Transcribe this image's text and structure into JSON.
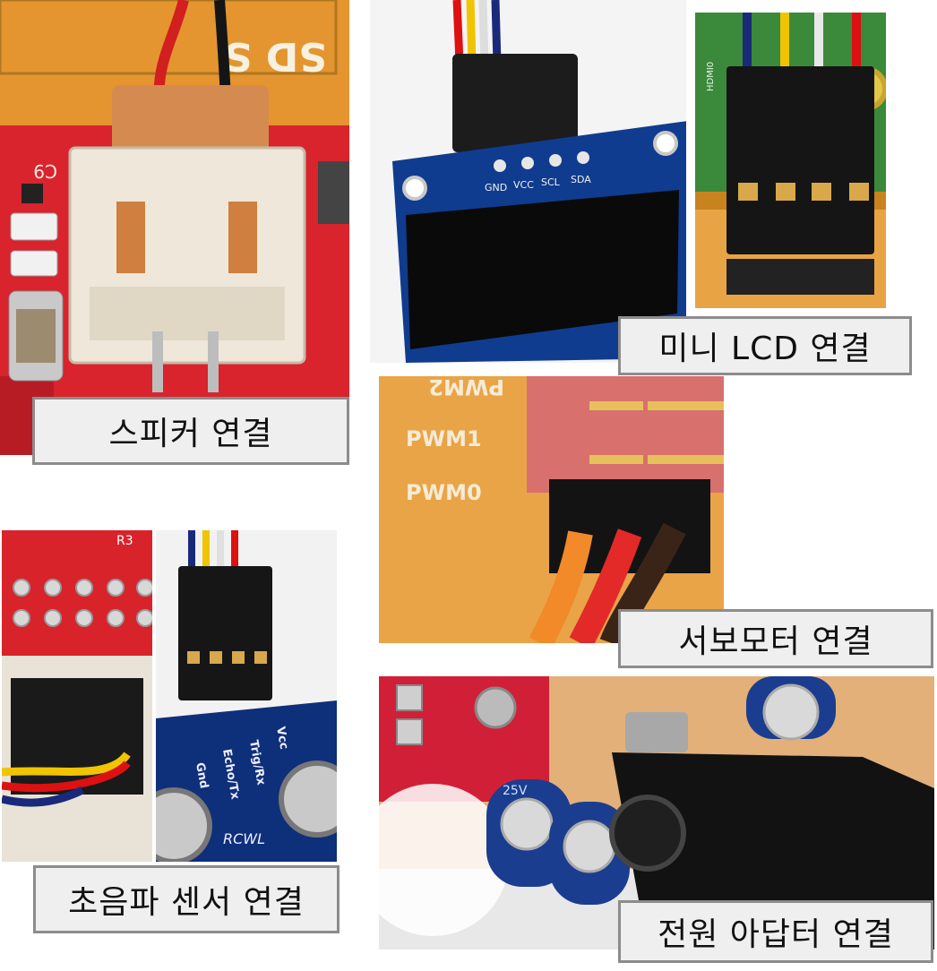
{
  "captions": {
    "speaker": "스피커 연결",
    "lcd": "미니 LCD 연결",
    "servo": "서보모터 연결",
    "ultrasonic": "초음파 센서 연결",
    "power": "전원 아답터 연결"
  },
  "board_labels": {
    "sd": "SD S",
    "c9": "C9",
    "pwm2": "PWM2",
    "pwm1": "PWM1",
    "pwm0": "PWM0",
    "r3": "R3",
    "hdmi": "HDMI0",
    "rcwl": "RCWL"
  },
  "lcd_pins": [
    "GND",
    "VCC",
    "SCL",
    "SDA"
  ],
  "sonar_pins": [
    "Gnd",
    "Echo/Tx",
    "Trig/Rx",
    "Vcc"
  ],
  "capacitor_mark": "25V"
}
